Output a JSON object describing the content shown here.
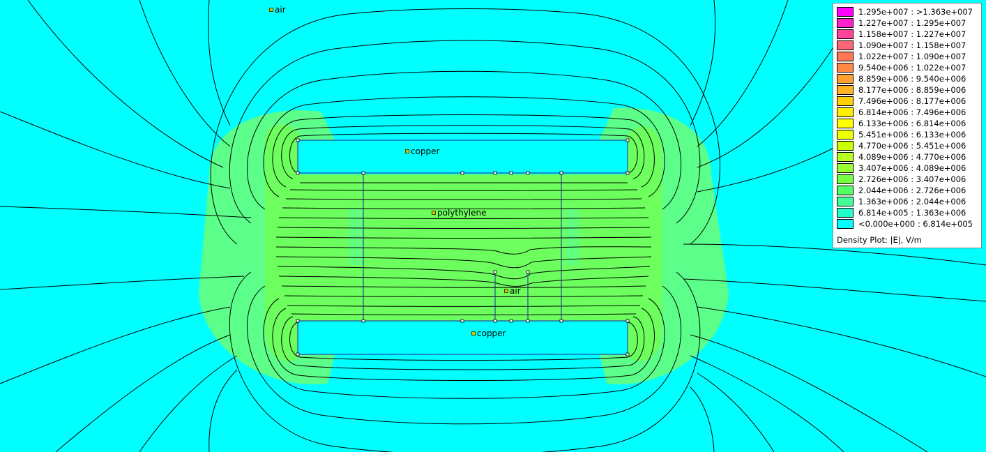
{
  "plot": {
    "title": "Density Plot: |E|, V/m",
    "background_color": "#00ffff",
    "field_color": "#5cff8a",
    "field_color_strong": "#6cff5e",
    "contour_color": "#000000",
    "boundary_color": "#2020a0"
  },
  "legend": {
    "rows": [
      {
        "range": "1.295e+007 : >1.363e+007",
        "color": "#ff00ff"
      },
      {
        "range": "1.227e+007 : 1.295e+007",
        "color": "#ff22cc"
      },
      {
        "range": "1.158e+007 : 1.227e+007",
        "color": "#ff4499"
      },
      {
        "range": "1.090e+007 : 1.158e+007",
        "color": "#ff6677"
      },
      {
        "range": "1.022e+007 : 1.090e+007",
        "color": "#ff7755"
      },
      {
        "range": "9.540e+006 : 1.022e+007",
        "color": "#ff8844"
      },
      {
        "range": "8.859e+006 : 9.540e+006",
        "color": "#ffa033"
      },
      {
        "range": "8.177e+006 : 8.859e+006",
        "color": "#ffb322"
      },
      {
        "range": "7.496e+006 : 8.177e+006",
        "color": "#ffd000"
      },
      {
        "range": "6.814e+006 : 7.496e+006",
        "color": "#ffee00"
      },
      {
        "range": "6.133e+006 : 6.814e+006",
        "color": "#ffff00"
      },
      {
        "range": "5.451e+006 : 6.133e+006",
        "color": "#eeff00"
      },
      {
        "range": "4.770e+006 : 5.451e+006",
        "color": "#ccff00"
      },
      {
        "range": "4.089e+006 : 4.770e+006",
        "color": "#b8ff22"
      },
      {
        "range": "3.407e+006 : 4.089e+006",
        "color": "#99ff33"
      },
      {
        "range": "2.726e+006 : 3.407e+006",
        "color": "#77ff44"
      },
      {
        "range": "2.044e+006 : 2.726e+006",
        "color": "#55ff66"
      },
      {
        "range": "1.363e+006 : 2.044e+006",
        "color": "#44ff99"
      },
      {
        "range": "6.814e+005 : 1.363e+006",
        "color": "#22ffcc"
      },
      {
        "range": "<0.000e+000 : 6.814e+005",
        "color": "#00ffff"
      }
    ]
  },
  "regions": {
    "air_top": "air",
    "copper_top": "copper",
    "polyethylene": "polythylene",
    "air_gap": "air",
    "copper_bottom": "copper"
  }
}
